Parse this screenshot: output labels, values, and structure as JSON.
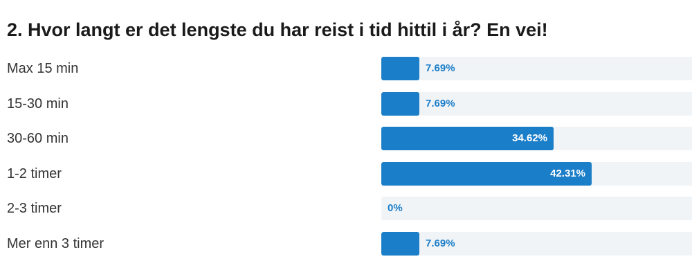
{
  "question": {
    "title": "2. Hvor langt er det lengste du har reist i tid hittil i år? En vei!"
  },
  "colors": {
    "bar_fill": "#1b7ec9",
    "bar_track": "#f1f4f7",
    "label_text": "#333333",
    "pct_inside_text": "#ffffff"
  },
  "chart_data": {
    "type": "bar",
    "orientation": "horizontal",
    "title": "2. Hvor langt er det lengste du har reist i tid hittil i år? En vei!",
    "categories": [
      "Max 15 min",
      "15-30 min",
      "30-60 min",
      "1-2 timer",
      "2-3 timer",
      "Mer enn 3 timer"
    ],
    "values": [
      7.69,
      7.69,
      34.62,
      42.31,
      0,
      7.69
    ],
    "value_labels": [
      "7.69%",
      "7.69%",
      "34.62%",
      "42.31%",
      "0%",
      "7.69%"
    ],
    "unit": "%",
    "xlim": [
      0,
      62.5
    ],
    "grid": false,
    "legend": "none"
  }
}
